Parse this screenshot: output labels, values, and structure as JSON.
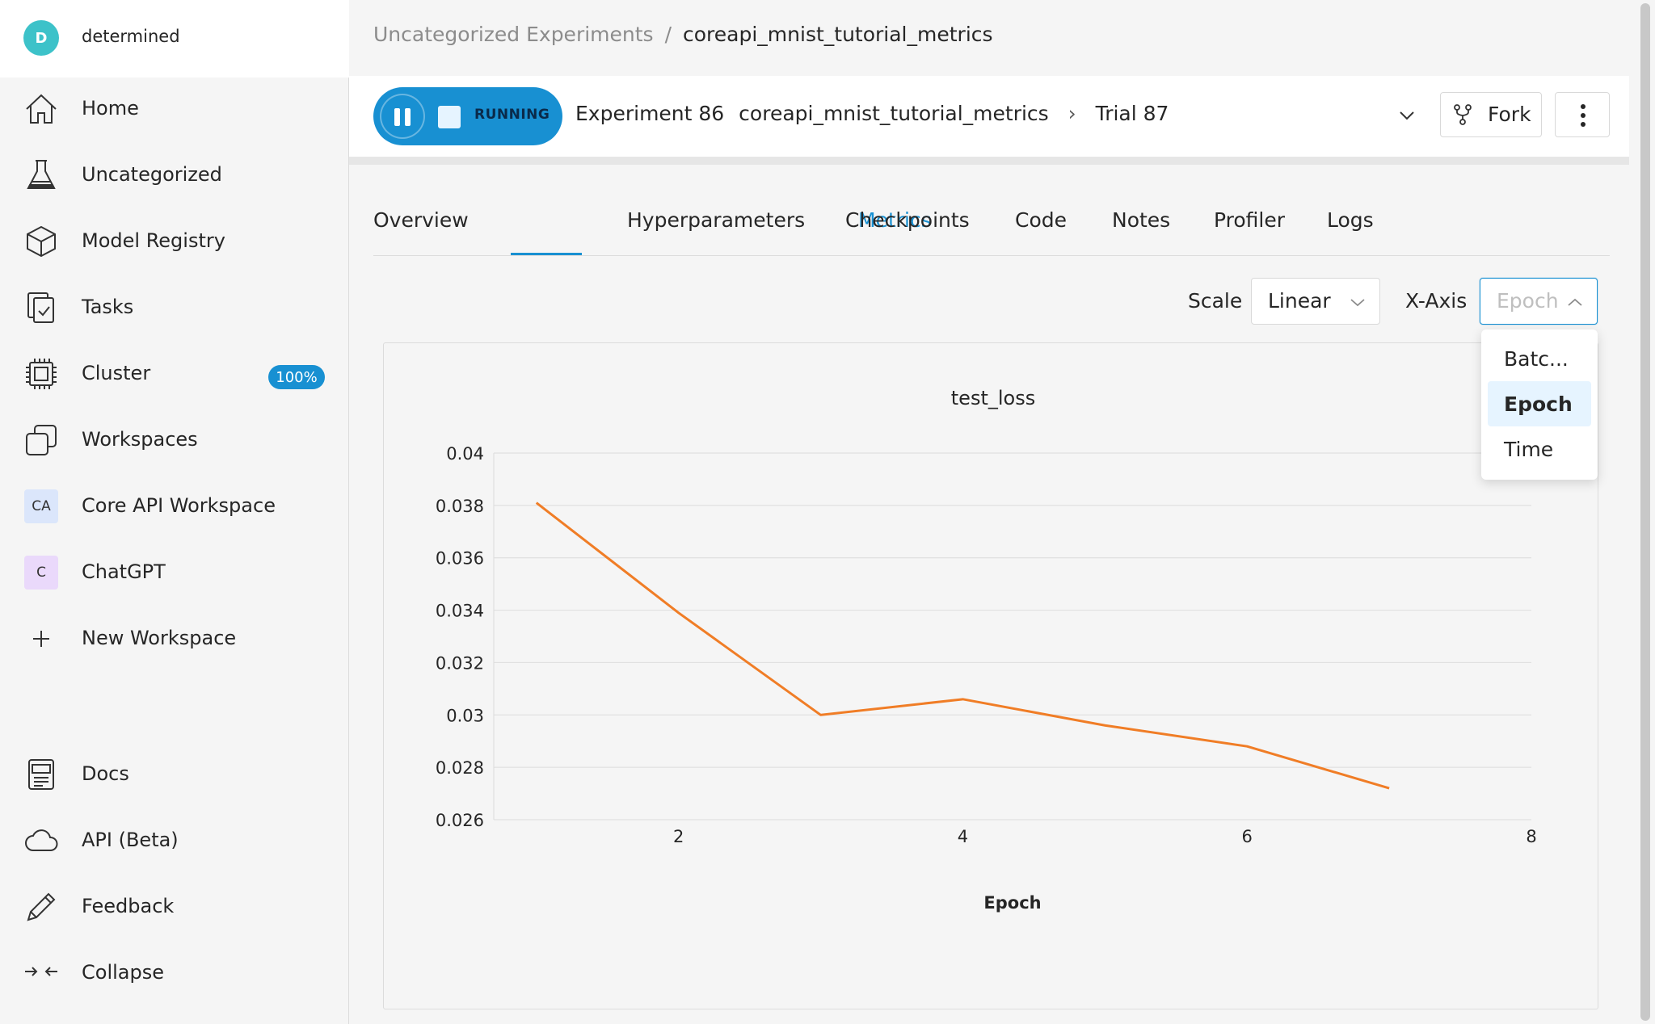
{
  "user": {
    "initial": "D",
    "name": "determined"
  },
  "sidebar": {
    "items": [
      {
        "label": "Home",
        "icon": "home-icon"
      },
      {
        "label": "Uncategorized",
        "icon": "flask-icon"
      },
      {
        "label": "Model Registry",
        "icon": "cube-icon"
      },
      {
        "label": "Tasks",
        "icon": "tasks-icon"
      },
      {
        "label": "Cluster",
        "icon": "chip-icon",
        "badge": "100%"
      },
      {
        "label": "Workspaces",
        "icon": "workspaces-icon"
      },
      {
        "label": "Core API Workspace",
        "tile": "CA",
        "tile_color": "#dbe6fb"
      },
      {
        "label": "ChatGPT",
        "tile": "C",
        "tile_color": "#ead9fb"
      },
      {
        "label": "New Workspace",
        "icon": "plus-icon"
      }
    ],
    "bottom": [
      {
        "label": "Docs",
        "icon": "docs-icon"
      },
      {
        "label": "API (Beta)",
        "icon": "cloud-icon"
      },
      {
        "label": "Feedback",
        "icon": "pencil-icon"
      },
      {
        "label": "Collapse",
        "icon": "collapse-icon"
      }
    ]
  },
  "breadcrumb": {
    "parent": "Uncategorized Experiments",
    "separator": "/",
    "current": "coreapi_mnist_tutorial_metrics"
  },
  "header": {
    "status": "RUNNING",
    "experiment": "Experiment 86",
    "experiment_name": "coreapi_mnist_tutorial_metrics",
    "trial": "Trial 87",
    "fork_label": "Fork"
  },
  "tabs": [
    "Overview",
    "Metrics",
    "Hyperparameters",
    "Checkpoints",
    "Code",
    "Notes",
    "Profiler",
    "Logs"
  ],
  "active_tab": "Metrics",
  "controls": {
    "scale_label": "Scale",
    "scale_value": "Linear",
    "xaxis_label": "X-Axis",
    "xaxis_value": "Epoch"
  },
  "xaxis_options": [
    {
      "label": "Batc...",
      "selected": false
    },
    {
      "label": "Epoch",
      "selected": true
    },
    {
      "label": "Time",
      "selected": false
    }
  ],
  "colors": {
    "accent": "#1890d2",
    "series": "#f07d26",
    "cluster_badge": "#1890d2"
  },
  "chart_data": {
    "type": "line",
    "title": "test_loss",
    "xlabel": "Epoch",
    "ylabel": "",
    "xlim": [
      0.7,
      8.0
    ],
    "ylim": [
      0.026,
      0.04
    ],
    "xticks": [
      2,
      4,
      6,
      8
    ],
    "yticks": [
      0.026,
      0.028,
      0.03,
      0.032,
      0.034,
      0.036,
      0.038,
      0.04
    ],
    "ytick_labels": [
      "0.026",
      "0.028",
      "0.03",
      "0.032",
      "0.034",
      "0.036",
      "0.038",
      "0.04"
    ],
    "grid": true,
    "series": [
      {
        "x": [
          1,
          2,
          3,
          4,
          5,
          6,
          7
        ],
        "y": [
          0.0381,
          0.0339,
          0.03,
          0.0306,
          0.0296,
          0.0288,
          0.0272
        ]
      }
    ]
  }
}
